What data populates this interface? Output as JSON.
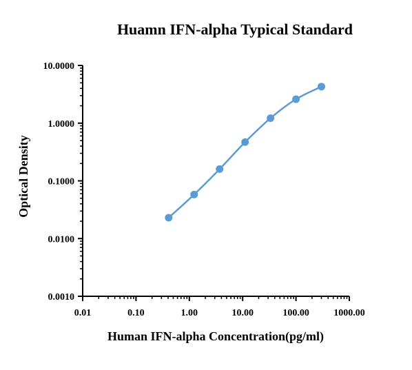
{
  "chart_data": {
    "type": "line",
    "title": "Huamn IFN-alpha Typical Standard",
    "xlabel": "Human IFN-alpha Concentration(pg/ml)",
    "ylabel": "Optical Density",
    "xscale": "log",
    "yscale": "log",
    "xlim": [
      0.01,
      1000
    ],
    "ylim": [
      0.001,
      10
    ],
    "x_ticks": [
      {
        "value": 0.01,
        "label": "0.01"
      },
      {
        "value": 0.1,
        "label": "0.10"
      },
      {
        "value": 1,
        "label": "1.00"
      },
      {
        "value": 10,
        "label": "10.00"
      },
      {
        "value": 100,
        "label": "100.00"
      },
      {
        "value": 1000,
        "label": "1000.00"
      }
    ],
    "y_ticks": [
      {
        "value": 0.001,
        "label": "0.0010"
      },
      {
        "value": 0.01,
        "label": "0.0100"
      },
      {
        "value": 0.1,
        "label": "0.1000"
      },
      {
        "value": 1,
        "label": "1.0000"
      },
      {
        "value": 10,
        "label": "10.0000"
      }
    ],
    "grid": false,
    "series": [
      {
        "color": "#5b9bd5",
        "x": [
          0.41,
          1.23,
          3.7,
          11.1,
          33.3,
          100,
          300
        ],
        "y": [
          0.023,
          0.058,
          0.16,
          0.47,
          1.22,
          2.6,
          4.3
        ]
      }
    ]
  }
}
